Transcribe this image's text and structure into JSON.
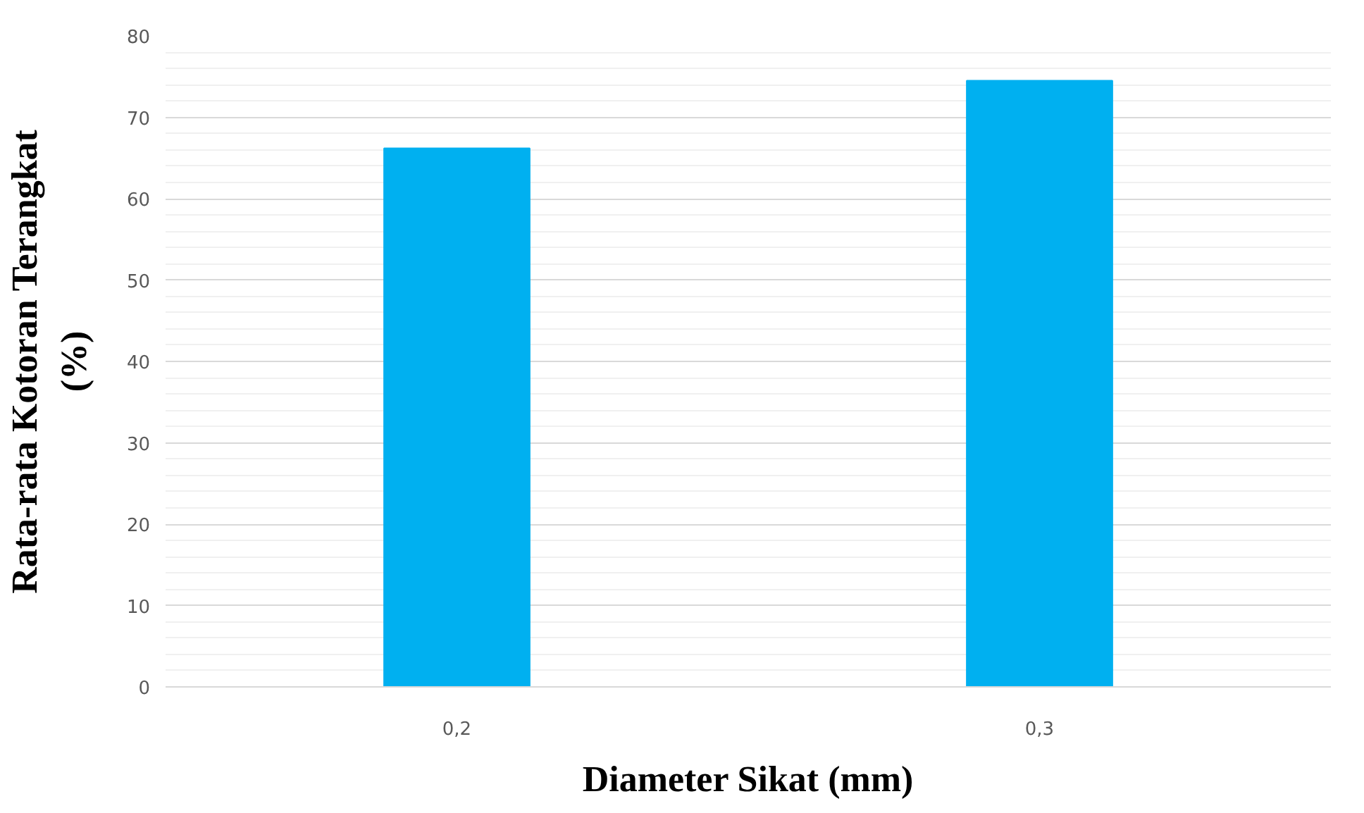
{
  "chart_data": {
    "type": "bar",
    "xlabel": "Diameter Sikat (mm)",
    "ylabel": "Rata-rata Kotoran Terangkat\n(%)",
    "categories": [
      "0,2",
      "0,3"
    ],
    "values": [
      66.2,
      74.5
    ],
    "color": "#00b0f0",
    "ylim": [
      0,
      80
    ],
    "yticks": [
      0,
      10,
      20,
      30,
      40,
      50,
      60,
      70,
      80
    ],
    "grid": "y"
  }
}
